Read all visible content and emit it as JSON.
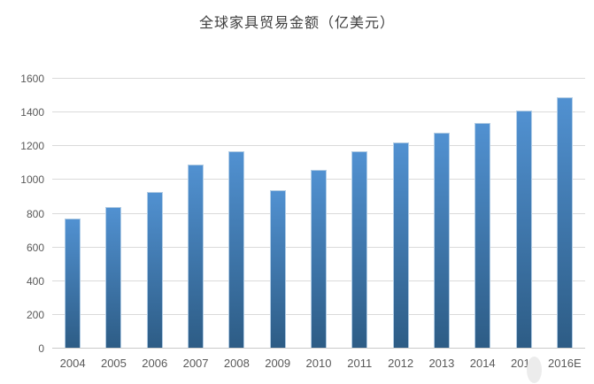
{
  "chart_data": {
    "type": "bar",
    "title": "全球家具贸易金额（亿美元）",
    "categories": [
      "2004",
      "2005",
      "2006",
      "2007",
      "2008",
      "2009",
      "2010",
      "2011",
      "2012",
      "2013",
      "2014",
      "2015",
      "2016E"
    ],
    "values": [
      770,
      840,
      930,
      1090,
      1170,
      940,
      1060,
      1170,
      1220,
      1280,
      1340,
      1410,
      1490
    ],
    "xlabel": "",
    "ylabel": "",
    "ylim": [
      0,
      1600
    ],
    "yticks": [
      0,
      200,
      400,
      600,
      800,
      1000,
      1200,
      1400,
      1600
    ],
    "grid": true,
    "legend_position": "none",
    "colors": {
      "bar_gradient_top": "#5191d1",
      "bar_gradient_bottom": "#2d5c85",
      "bar_highlight_border": "#bed6ec",
      "gridline": "#dadada",
      "axis_line": "#c9c9c9",
      "tick_label": "#595959",
      "title_text": "#3f3f3f"
    }
  }
}
